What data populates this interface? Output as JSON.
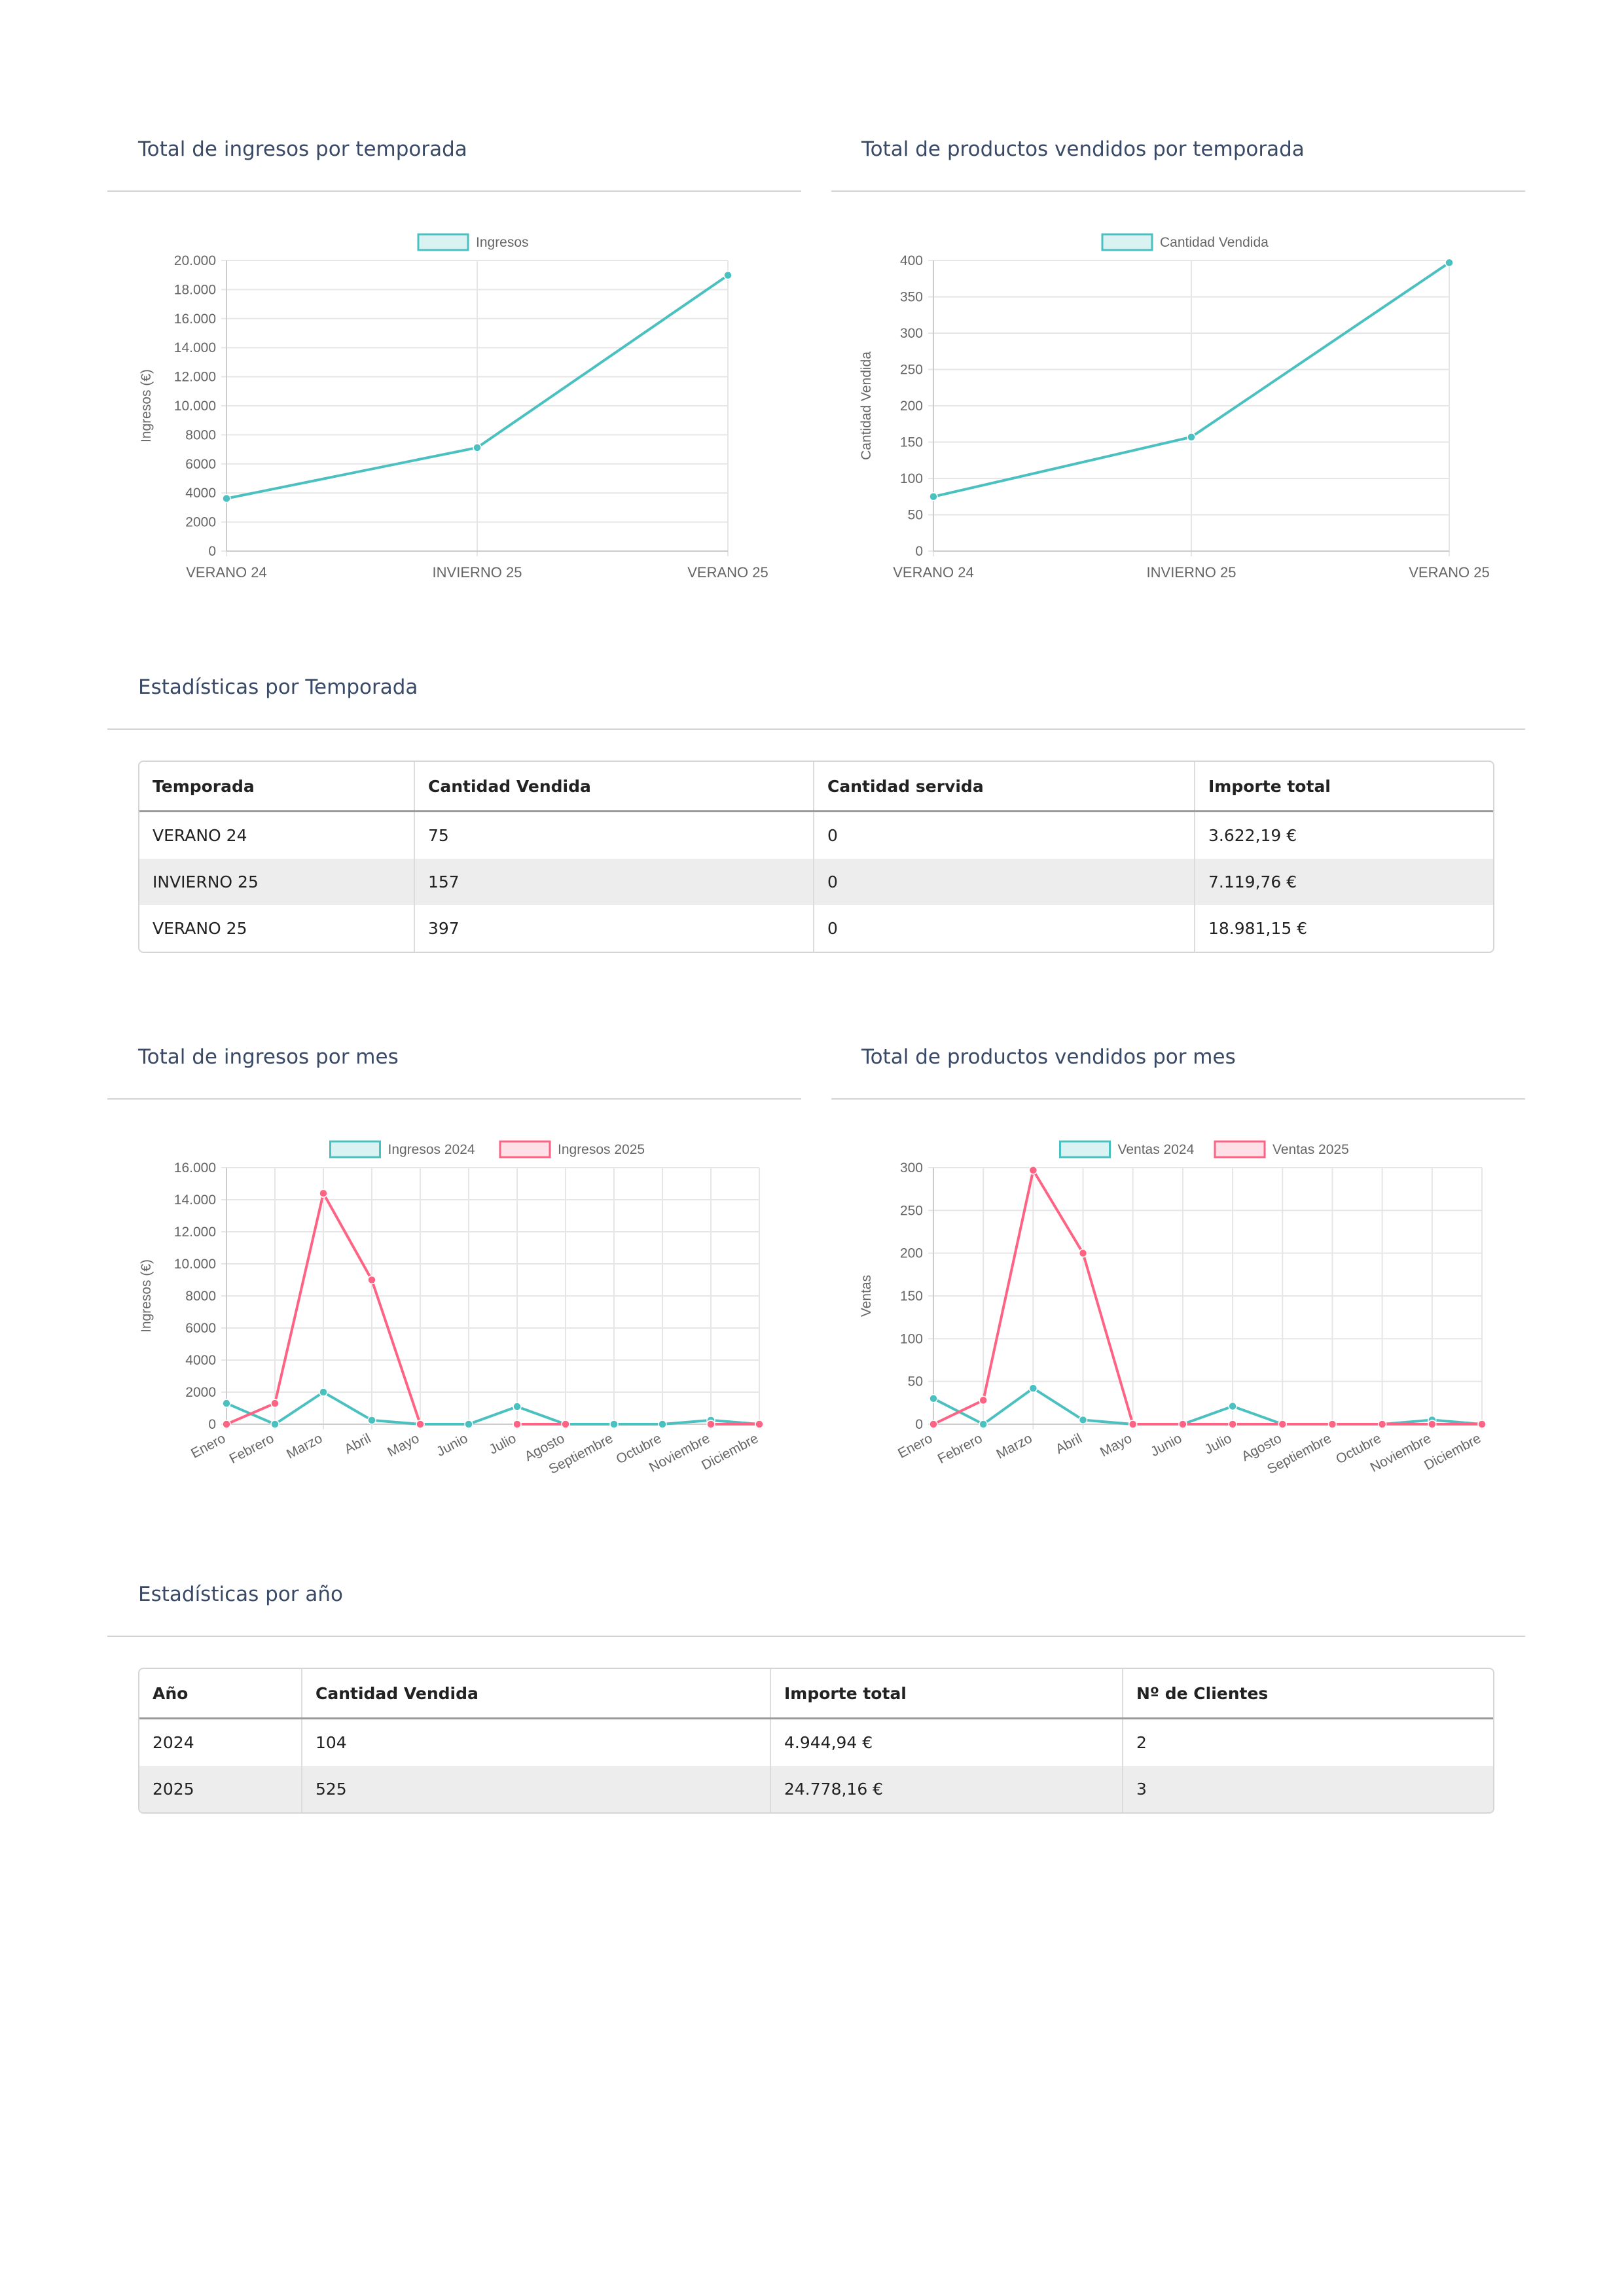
{
  "sections": {
    "ingresos_temporada": "Total de ingresos por temporada",
    "productos_temporada": "Total de productos vendidos por temporada",
    "stats_temporada": "Estadísticas por Temporada",
    "ingresos_mes": "Total de ingresos por mes",
    "productos_mes": "Total de productos vendidos por mes",
    "stats_anio": "Estadísticas por año"
  },
  "colors": {
    "teal": "#4bc0c0",
    "pink": "#ff6384"
  },
  "chart_data": [
    {
      "type": "line",
      "categories": [
        "VERANO 24",
        "INVIERNO 25",
        "VERANO 25"
      ],
      "series": [
        {
          "name": "Ingresos",
          "values": [
            3622.19,
            7119.76,
            18981.15
          ],
          "color": "#4bc0c0"
        }
      ],
      "ylabel": "Ingresos (€)",
      "ylim": [
        0,
        20000
      ],
      "yticks": [
        0,
        2000,
        4000,
        6000,
        8000,
        10000,
        12000,
        14000,
        16000,
        18000,
        20000
      ],
      "ytick_labels": [
        "0",
        "2000",
        "4000",
        "6000",
        "8000",
        "10.000",
        "12.000",
        "14.000",
        "16.000",
        "18.000",
        "20.000"
      ],
      "legend": "top-center",
      "grid": true
    },
    {
      "type": "line",
      "categories": [
        "VERANO 24",
        "INVIERNO 25",
        "VERANO 25"
      ],
      "series": [
        {
          "name": "Cantidad Vendida",
          "values": [
            75,
            157,
            397
          ],
          "color": "#4bc0c0"
        }
      ],
      "ylabel": "Cantidad Vendida",
      "ylim": [
        0,
        400
      ],
      "yticks": [
        0,
        50,
        100,
        150,
        200,
        250,
        300,
        350,
        400
      ],
      "ytick_labels": [
        "0",
        "50",
        "100",
        "150",
        "200",
        "250",
        "300",
        "350",
        "400"
      ],
      "legend": "top-center",
      "grid": true
    },
    {
      "type": "line",
      "categories": [
        "Enero",
        "Febrero",
        "Marzo",
        "Abril",
        "Mayo",
        "Junio",
        "Julio",
        "Agosto",
        "Septiembre",
        "Octubre",
        "Noviembre",
        "Diciembre"
      ],
      "series": [
        {
          "name": "Ingresos 2024",
          "values": [
            1300,
            0,
            2000,
            250,
            0,
            0,
            1100,
            0,
            0,
            0,
            250,
            0
          ],
          "color": "#4bc0c0"
        },
        {
          "name": "Ingresos 2025",
          "values": [
            0,
            1300,
            14400,
            9000,
            0,
            null,
            0,
            0,
            null,
            null,
            0,
            0
          ],
          "color": "#ff6384"
        }
      ],
      "ylabel": "Ingresos (€)",
      "ylim": [
        0,
        16000
      ],
      "yticks": [
        0,
        2000,
        4000,
        6000,
        8000,
        10000,
        12000,
        14000,
        16000
      ],
      "ytick_labels": [
        "0",
        "2000",
        "4000",
        "6000",
        "8000",
        "10.000",
        "12.000",
        "14.000",
        "16.000"
      ],
      "legend": "top-center",
      "grid": true
    },
    {
      "type": "line",
      "categories": [
        "Enero",
        "Febrero",
        "Marzo",
        "Abril",
        "Mayo",
        "Junio",
        "Julio",
        "Agosto",
        "Septiembre",
        "Octubre",
        "Noviembre",
        "Diciembre"
      ],
      "series": [
        {
          "name": "Ventas 2024",
          "values": [
            30,
            0,
            42,
            5,
            0,
            0,
            21,
            0,
            0,
            0,
            5,
            0
          ],
          "color": "#4bc0c0"
        },
        {
          "name": "Ventas 2025",
          "values": [
            0,
            28,
            297,
            200,
            0,
            0,
            0,
            0,
            0,
            0,
            0,
            0
          ],
          "color": "#ff6384"
        }
      ],
      "ylabel": "Ventas",
      "ylim": [
        0,
        300
      ],
      "yticks": [
        0,
        50,
        100,
        150,
        200,
        250,
        300
      ],
      "ytick_labels": [
        "0",
        "50",
        "100",
        "150",
        "200",
        "250",
        "300"
      ],
      "legend": "top-center",
      "grid": true
    }
  ],
  "tables": {
    "temporada": {
      "headers": [
        "Temporada",
        "Cantidad Vendida",
        "Cantidad servida",
        "Importe total"
      ],
      "rows": [
        [
          "VERANO 24",
          "75",
          "0",
          "3.622,19 €"
        ],
        [
          "INVIERNO 25",
          "157",
          "0",
          "7.119,76 €"
        ],
        [
          "VERANO 25",
          "397",
          "0",
          "18.981,15 €"
        ]
      ]
    },
    "anio": {
      "headers": [
        "Año",
        "Cantidad Vendida",
        "Importe total",
        "Nº de Clientes"
      ],
      "rows": [
        [
          "2024",
          "104",
          "4.944,94 €",
          "2"
        ],
        [
          "2025",
          "525",
          "24.778,16 €",
          "3"
        ]
      ]
    }
  }
}
